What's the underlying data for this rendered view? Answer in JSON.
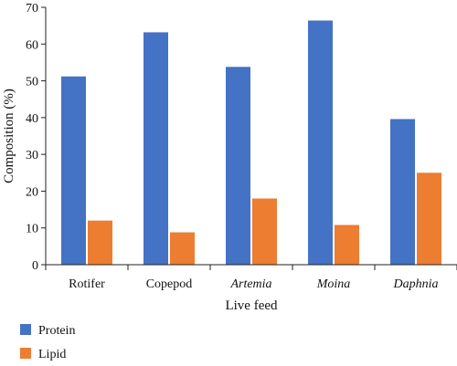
{
  "chart_data": {
    "type": "bar",
    "categories": [
      "Rotifer",
      "Copepod",
      "Artemia",
      "Moina",
      "Daphnia"
    ],
    "italic_categories": [
      "Artemia",
      "Moina",
      "Daphnia"
    ],
    "series": [
      {
        "name": "Protein",
        "values": [
          51.2,
          63.2,
          53.8,
          66.4,
          39.6
        ]
      },
      {
        "name": "Lipid",
        "values": [
          12.0,
          8.8,
          18.0,
          10.8,
          25.0
        ]
      }
    ],
    "xlabel": "Live feed",
    "ylabel": "Composition (%)",
    "ylim": [
      0,
      70
    ],
    "yticks": [
      0,
      10,
      20,
      30,
      40,
      50,
      60,
      70
    ],
    "grid": false,
    "legend": "bottom-left",
    "colors": {
      "Protein": "#4472C4",
      "Lipid": "#ED7D31",
      "axis": "#222222"
    }
  }
}
